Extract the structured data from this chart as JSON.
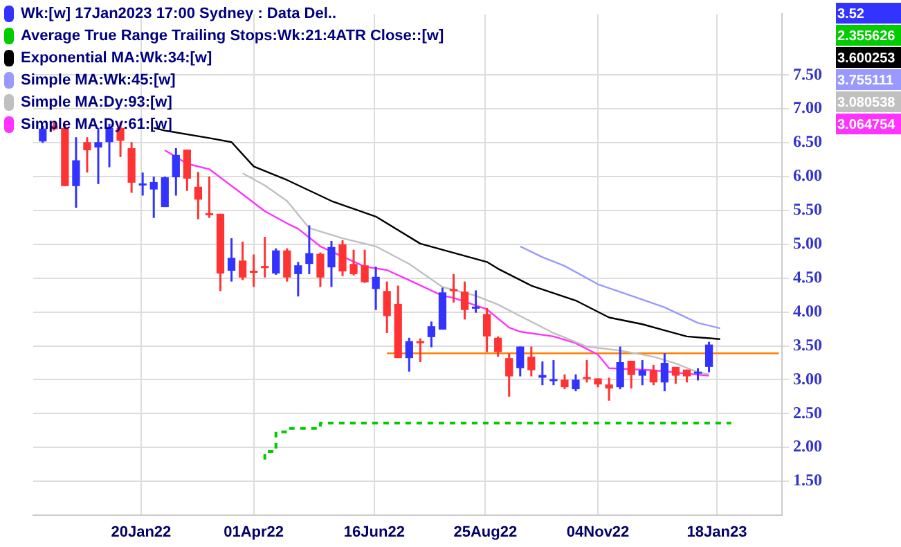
{
  "chart_data": {
    "type": "candlestick",
    "x": [
      "2021-11-19",
      "2021-11-26",
      "2021-12-03",
      "2021-12-10",
      "2021-12-17",
      "2021-12-24",
      "2021-12-31",
      "2022-01-07",
      "2022-01-14",
      "2022-01-21",
      "2022-01-28",
      "2022-02-04",
      "2022-02-11",
      "2022-02-18",
      "2022-02-25",
      "2022-03-04",
      "2022-03-11",
      "2022-03-18",
      "2022-03-25",
      "2022-04-01",
      "2022-04-08",
      "2022-04-15",
      "2022-04-22",
      "2022-04-29",
      "2022-05-06",
      "2022-05-13",
      "2022-05-20",
      "2022-05-27",
      "2022-06-03",
      "2022-06-10",
      "2022-06-17",
      "2022-06-24",
      "2022-07-01",
      "2022-07-08",
      "2022-07-15",
      "2022-07-22",
      "2022-07-29",
      "2022-08-05",
      "2022-08-12",
      "2022-08-19",
      "2022-08-26",
      "2022-09-02",
      "2022-09-09",
      "2022-09-16",
      "2022-09-23",
      "2022-09-30",
      "2022-10-07",
      "2022-10-14",
      "2022-10-21",
      "2022-10-28",
      "2022-11-04",
      "2022-11-11",
      "2022-11-18",
      "2022-11-25",
      "2022-12-02",
      "2022-12-09",
      "2022-12-16",
      "2022-12-23",
      "2022-12-30",
      "2023-01-06",
      "2023-01-13"
    ],
    "xlim": [
      "2021-11-13",
      "2023-02-28"
    ],
    "xticks": [
      {
        "value": "2022-01-20",
        "label": "20Jan22"
      },
      {
        "value": "2022-04-01",
        "label": "01Apr22"
      },
      {
        "value": "2022-06-16",
        "label": "16Jun22"
      },
      {
        "value": "2022-08-25",
        "label": "25Aug22"
      },
      {
        "value": "2022-11-04",
        "label": "04Nov22"
      },
      {
        "value": "2023-01-18",
        "label": "18Jan23"
      }
    ],
    "ylim": [
      1.0,
      8.4
    ],
    "yticks": [
      {
        "value": 1.5,
        "label": "1.50"
      },
      {
        "value": 2,
        "label": "2.00"
      },
      {
        "value": 2.5,
        "label": "2.50"
      },
      {
        "value": 3,
        "label": "3.00"
      },
      {
        "value": 3.5,
        "label": "3.50"
      },
      {
        "value": 4,
        "label": "4.00"
      },
      {
        "value": 4.5,
        "label": "4.50"
      },
      {
        "value": 5,
        "label": "5.00"
      },
      {
        "value": 5.5,
        "label": "5.50"
      },
      {
        "value": 6,
        "label": "6.00"
      },
      {
        "value": 6.5,
        "label": "6.50"
      },
      {
        "value": 7,
        "label": "7.00"
      },
      {
        "value": 7.5,
        "label": "7.50"
      }
    ],
    "grid": true,
    "legend": "top left",
    "annotations": [
      "3.52",
      "2.355626",
      "3.600253",
      "3.755111",
      "3.080538",
      "3.064754"
    ],
    "series": [
      {
        "name": "Wk:[w]  17Jan2023 17:00 Sydney : Data Del..",
        "color": "#3333ff",
        "colors": [
          "#3333ff",
          "#ff3333",
          "#ff3333",
          "#3333ff",
          "#ff3333",
          "#3333ff",
          "#3333ff",
          "#ff3333",
          "#ff3333",
          "#3333ff",
          "#3333ff",
          "#3333ff",
          "#3333ff",
          "#ff3333",
          "#ff3333",
          "#ff3333",
          "#ff3333",
          "#3333ff",
          "#ff3333",
          "#ff3333",
          "#ff3333",
          "#3333ff",
          "#ff3333",
          "#3333ff",
          "#3333ff",
          "#ff3333",
          "#3333ff",
          "#ff3333",
          "#ff3333",
          "#ff3333",
          "#3333ff",
          "#ff3333",
          "#ff3333",
          "#3333ff",
          "#ff3333",
          "#3333ff",
          "#3333ff",
          "#ff3333",
          "#ff3333",
          "#3333ff",
          "#ff3333",
          "#ff3333",
          "#ff3333",
          "#3333ff",
          "#ff3333",
          "#3333ff",
          "#3333ff",
          "#ff3333",
          "#3333ff",
          "#ff3333",
          "#ff3333",
          "#ff3333",
          "#3333ff",
          "#ff3333",
          "#3333ff",
          "#ff3333",
          "#3333ff",
          "#ff3333",
          "#ff3333",
          "#3333ff",
          "#3333ff"
        ],
        "ohlc": [
          [
            6.52,
            6.75,
            6.5,
            6.71
          ],
          [
            6.75,
            6.8,
            6.68,
            6.7
          ],
          [
            6.72,
            6.76,
            5.86,
            5.86
          ],
          [
            5.86,
            6.58,
            5.54,
            6.24
          ],
          [
            6.51,
            6.58,
            6.06,
            6.39
          ],
          [
            6.43,
            6.72,
            5.89,
            6.51
          ],
          [
            6.51,
            6.78,
            6.14,
            6.72
          ],
          [
            6.72,
            6.8,
            6.29,
            6.53
          ],
          [
            6.42,
            6.51,
            5.76,
            5.91
          ],
          [
            5.88,
            6.06,
            5.72,
            5.9
          ],
          [
            5.81,
            6.0,
            5.39,
            5.92
          ],
          [
            5.55,
            6.0,
            5.55,
            5.99
          ],
          [
            5.99,
            6.42,
            5.72,
            6.32
          ],
          [
            6.4,
            6.4,
            5.79,
            5.97
          ],
          [
            5.85,
            6.07,
            5.37,
            5.66
          ],
          [
            5.46,
            6.0,
            5.39,
            5.45
          ],
          [
            5.45,
            5.45,
            4.31,
            4.57
          ],
          [
            4.61,
            5.09,
            4.45,
            4.8
          ],
          [
            4.76,
            5.04,
            4.47,
            4.51
          ],
          [
            4.61,
            4.85,
            4.37,
            4.58
          ],
          [
            4.68,
            5.11,
            4.51,
            4.67
          ],
          [
            4.57,
            4.94,
            4.55,
            4.91
          ],
          [
            4.91,
            4.94,
            4.45,
            4.51
          ],
          [
            4.56,
            4.74,
            4.23,
            4.69
          ],
          [
            4.71,
            5.28,
            4.56,
            4.87
          ],
          [
            4.86,
            4.88,
            4.37,
            4.51
          ],
          [
            4.66,
            5.05,
            4.37,
            4.96
          ],
          [
            5.0,
            5.06,
            4.53,
            4.6
          ],
          [
            4.71,
            4.92,
            4.54,
            4.56
          ],
          [
            4.69,
            4.92,
            4.43,
            4.44
          ],
          [
            4.34,
            4.67,
            4.03,
            4.52
          ],
          [
            4.31,
            4.45,
            3.69,
            3.94
          ],
          [
            4.12,
            4.39,
            3.32,
            3.32
          ],
          [
            3.32,
            3.62,
            3.12,
            3.57
          ],
          [
            3.57,
            3.61,
            3.26,
            3.56
          ],
          [
            3.63,
            3.86,
            3.48,
            3.79
          ],
          [
            3.74,
            4.36,
            3.74,
            4.29
          ],
          [
            4.34,
            4.56,
            4.14,
            4.33
          ],
          [
            4.3,
            4.45,
            3.89,
            4.03
          ],
          [
            4.06,
            4.32,
            3.99,
            4.08
          ],
          [
            3.97,
            4.06,
            3.41,
            3.64
          ],
          [
            3.62,
            3.64,
            3.34,
            3.41
          ],
          [
            3.32,
            3.39,
            2.75,
            3.05
          ],
          [
            3.17,
            3.49,
            3.05,
            3.49
          ],
          [
            3.34,
            3.49,
            3.05,
            3.14
          ],
          [
            3.03,
            3.27,
            2.92,
            3.07
          ],
          [
            2.99,
            3.29,
            2.92,
            3.01
          ],
          [
            3.0,
            3.08,
            2.86,
            2.89
          ],
          [
            2.86,
            3.08,
            2.83,
            3.0
          ],
          [
            3.04,
            3.29,
            2.96,
            3.01
          ],
          [
            3.02,
            3.02,
            2.89,
            2.93
          ],
          [
            2.93,
            3.03,
            2.69,
            2.87
          ],
          [
            2.89,
            3.49,
            2.86,
            3.26
          ],
          [
            3.28,
            3.28,
            2.87,
            3.07
          ],
          [
            3.06,
            3.29,
            2.92,
            3.14
          ],
          [
            3.14,
            3.22,
            2.92,
            2.96
          ],
          [
            2.96,
            3.39,
            2.83,
            3.25
          ],
          [
            3.19,
            3.19,
            2.94,
            3.06
          ],
          [
            3.15,
            3.15,
            2.96,
            3.05
          ],
          [
            3.09,
            3.17,
            2.99,
            3.12
          ],
          [
            3.19,
            3.56,
            3.11,
            3.52
          ]
        ]
      },
      {
        "type": "step",
        "name": "Average True Range Trailing Stops:Wk:21:4ATR Close::[w]",
        "color": "#00cc00",
        "line_style": "dashed",
        "x": [
          "2022-04-08",
          "2022-04-15",
          "2022-04-22",
          "2022-05-13",
          "2022-05-27",
          "2023-01-27"
        ],
        "values": [
          1.82,
          1.94,
          2.23,
          2.28,
          2.36,
          2.36
        ]
      },
      {
        "type": "line",
        "name": "Exponential MA:Wk:34:[w]",
        "color": "#000000",
        "x": [
          "2022-01-28",
          "2022-02-04",
          "2022-03-04",
          "2022-03-18",
          "2022-04-01",
          "2022-04-22",
          "2022-05-20",
          "2022-06-17",
          "2022-07-15",
          "2022-08-26",
          "2022-09-02",
          "2022-09-23",
          "2022-10-21",
          "2022-11-11",
          "2022-12-02",
          "2022-12-16",
          "2022-12-30",
          "2023-01-20"
        ],
        "values": [
          6.72,
          6.68,
          6.57,
          6.51,
          6.15,
          5.95,
          5.64,
          5.41,
          5.01,
          4.74,
          4.64,
          4.39,
          4.17,
          3.92,
          3.82,
          3.73,
          3.64,
          3.6
        ]
      },
      {
        "type": "line",
        "name": "Simple MA:Wk:45:[w]",
        "color": "#9999ff",
        "x": [
          "2022-09-16",
          "2022-09-30",
          "2022-10-14",
          "2022-11-04",
          "2022-11-25",
          "2022-12-16",
          "2023-01-06",
          "2023-01-20"
        ],
        "values": [
          4.97,
          4.81,
          4.68,
          4.41,
          4.24,
          4.07,
          3.84,
          3.76
        ]
      },
      {
        "type": "line",
        "name": "Simple MA:Dy:93:[w]",
        "color": "#c0c0c0",
        "x": [
          "2022-03-25",
          "2022-04-08",
          "2022-04-22",
          "2022-05-06",
          "2022-05-27",
          "2022-06-17",
          "2022-07-08",
          "2022-07-29",
          "2022-08-19",
          "2022-09-02",
          "2022-09-16",
          "2022-10-07",
          "2022-10-28",
          "2022-11-18",
          "2022-12-09",
          "2022-12-23",
          "2023-01-06",
          "2023-01-13"
        ],
        "values": [
          6.05,
          5.87,
          5.64,
          5.24,
          5.09,
          4.97,
          4.71,
          4.37,
          4.24,
          4.11,
          3.94,
          3.69,
          3.49,
          3.43,
          3.34,
          3.24,
          3.11,
          3.08
        ]
      },
      {
        "type": "line",
        "name": "Simple MA:Dy:61:[w]",
        "color": "#ff33ff",
        "x": [
          "2022-02-04",
          "2022-02-18",
          "2022-03-04",
          "2022-03-25",
          "2022-04-08",
          "2022-04-22",
          "2022-04-29",
          "2022-05-13",
          "2022-06-10",
          "2022-06-24",
          "2022-07-08",
          "2022-07-29",
          "2022-08-05",
          "2022-08-26",
          "2022-09-09",
          "2022-09-16",
          "2022-10-07",
          "2022-10-21",
          "2022-11-04",
          "2022-11-11",
          "2022-12-09",
          "2022-12-30",
          "2023-01-13"
        ],
        "values": [
          6.39,
          6.19,
          6.11,
          5.74,
          5.49,
          5.31,
          5.23,
          4.97,
          4.67,
          4.62,
          4.47,
          4.24,
          4.21,
          4.04,
          3.77,
          3.71,
          3.64,
          3.54,
          3.37,
          3.17,
          3.14,
          3.09,
          3.06
        ]
      },
      {
        "type": "line",
        "color": "#ff8000",
        "x": [
          "2022-06-24",
          "2023-02-26"
        ],
        "values": [
          3.39,
          3.39
        ]
      }
    ]
  }
}
